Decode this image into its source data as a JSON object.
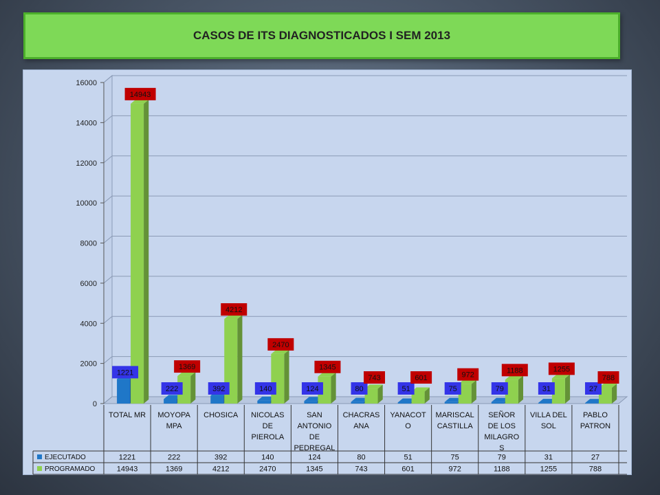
{
  "title": "CASOS DE ITS DIAGNOSTICADOS  I SEM 2013",
  "chart_data": {
    "type": "bar",
    "title": "CASOS DE ITS DIAGNOSTICADOS  I SEM 2013",
    "categories": [
      [
        "TOTAL MR"
      ],
      [
        "MOYOPA",
        "MPA"
      ],
      [
        "CHOSICA"
      ],
      [
        "NICOLAS",
        "DE",
        "PIEROLA"
      ],
      [
        "SAN",
        "ANTONIO",
        "DE",
        "PEDREGAL"
      ],
      [
        "CHACRAS",
        "ANA"
      ],
      [
        "YANACOT",
        "O"
      ],
      [
        "MARISCAL",
        "CASTILLA"
      ],
      [
        "SEÑOR",
        "DE LOS",
        "MILAGRO",
        "S"
      ],
      [
        "VILLA DEL",
        "SOL"
      ],
      [
        "PABLO",
        "PATRON"
      ]
    ],
    "series": [
      {
        "name": "EJECUTADO",
        "color": "#1f77c8",
        "label_bg": "#3434e8",
        "values": [
          1221,
          222,
          392,
          140,
          124,
          80,
          51,
          75,
          79,
          31,
          27
        ]
      },
      {
        "name": "PROGRAMADO",
        "color": "#8fd14f",
        "label_bg": "#c00000",
        "values": [
          14943,
          1369,
          4212,
          2470,
          1345,
          743,
          601,
          972,
          1188,
          1255,
          788
        ]
      }
    ],
    "y_ticks": [
      0,
      2000,
      4000,
      6000,
      8000,
      10000,
      12000,
      14000,
      16000
    ],
    "ylim": [
      0,
      16000
    ],
    "grid": true,
    "legend": "data-table"
  }
}
